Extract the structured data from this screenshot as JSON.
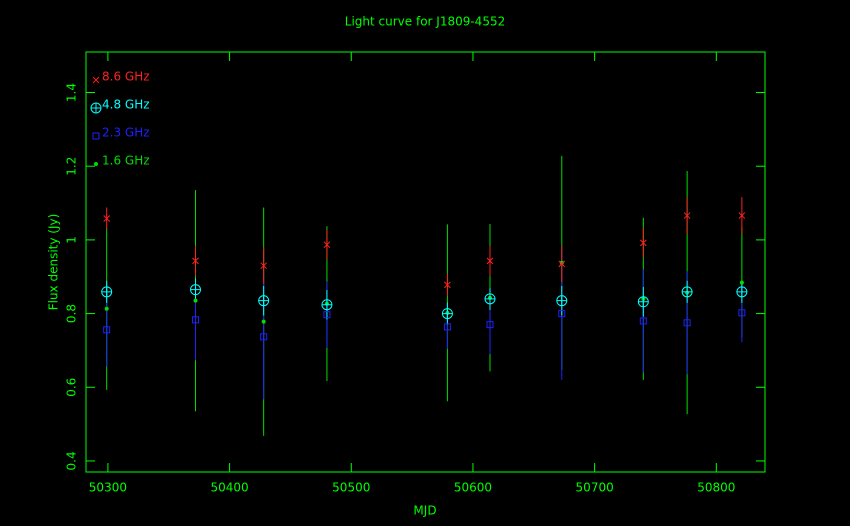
{
  "chart_data": {
    "type": "scatter",
    "title": "Light curve for J1809-4552",
    "x_label": "MJD",
    "y_label": "Flux density (Jy)",
    "x": [
      50299,
      50372,
      50428,
      50480,
      50579,
      50614,
      50673,
      50740,
      50776,
      50821
    ],
    "xlim": [
      50282,
      50840
    ],
    "ylim": [
      0.37,
      1.51
    ],
    "xticks": [
      50300,
      50400,
      50500,
      50600,
      50700,
      50800
    ],
    "yticks": [
      0.4,
      0.6,
      0.8,
      1,
      1.2,
      1.4
    ],
    "axis_color": "#00ff00",
    "legend": "upper left",
    "series": [
      {
        "name": "8.6 GHz",
        "color": "#ff2020",
        "marker": "x",
        "values": [
          1.058,
          0.943,
          0.93,
          0.987,
          0.878,
          0.943,
          0.935,
          0.992,
          1.066,
          1.066
        ],
        "errors": [
          0.03,
          0.04,
          0.05,
          0.04,
          0.03,
          0.04,
          0.05,
          0.04,
          0.05,
          0.05
        ]
      },
      {
        "name": "4.8 GHz",
        "color": "#00ffff",
        "marker": "circle-plus",
        "values": [
          0.859,
          0.865,
          0.835,
          0.824,
          0.8,
          0.84,
          0.835,
          0.832,
          0.859,
          0.859
        ],
        "errors": [
          0.03,
          0.03,
          0.04,
          0.04,
          0.03,
          0.03,
          0.04,
          0.04,
          0.03,
          0.03
        ]
      },
      {
        "name": "2.3 GHz",
        "color": "#2020ff",
        "marker": "square",
        "values": [
          0.756,
          0.783,
          0.737,
          0.797,
          0.764,
          0.77,
          0.8,
          0.78,
          0.775,
          0.802
        ],
        "errors": [
          0.1,
          0.11,
          0.17,
          0.09,
          0.06,
          0.08,
          0.18,
          0.14,
          0.14,
          0.08
        ]
      },
      {
        "name": "1.6 GHz",
        "color": "#00dd00",
        "marker": "dot",
        "values": [
          0.813,
          0.835,
          0.778,
          0.827,
          0.802,
          0.843,
          0.938,
          0.84,
          0.857,
          0.884
        ],
        "errors": [
          0.22,
          0.3,
          0.31,
          0.21,
          0.24,
          0.2,
          0.29,
          0.22,
          0.33,
          0.15
        ]
      }
    ]
  }
}
